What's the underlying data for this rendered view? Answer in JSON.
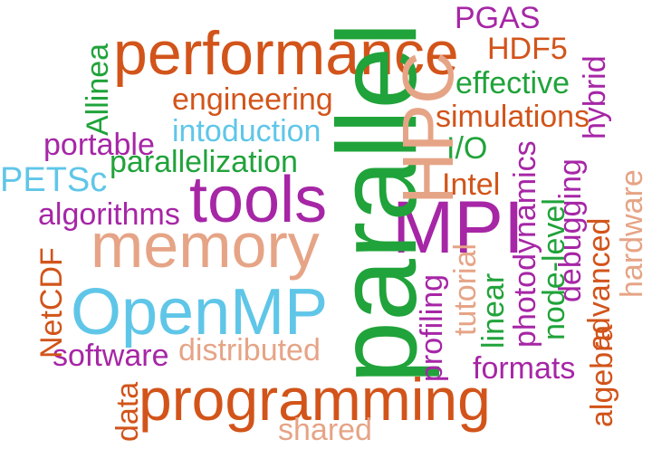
{
  "word_cloud": {
    "colors": {
      "orange": "#d2541a",
      "green": "#20a33a",
      "purple": "#a626a6",
      "blue": "#5fc6e8",
      "peach": "#e6a486"
    },
    "words": {
      "performance": "performance",
      "PGAS": "PGAS",
      "HDF5": "HDF5",
      "hybrid": "hybrid",
      "Allinea": "Allinea",
      "parallel": "parallel",
      "HPC": "HPC",
      "effective": "effective",
      "engineering": "engineering",
      "simulations": "simulations",
      "intoduction": "intoduction",
      "portable": "portable",
      "I/O": "I/O",
      "PETSc": "PETSc",
      "parallelization": "parallelization",
      "Intel": "Intel",
      "hardware": "hardware",
      "tools": "tools",
      "algorithms": "algorithms",
      "MPI": "MPI",
      "memory": "memory",
      "NetCDF": "NetCDF",
      "tutorial": "tutorial",
      "photodynamics": "photodynamics",
      "node_level": "node-level",
      "debugging": "debugging",
      "OpenMP": "OpenMP",
      "profiling": "profiling",
      "linear": "linear",
      "advanced": "advanced",
      "algebra": "algebra",
      "software": "software",
      "distributed": "distributed",
      "formats": "formats",
      "data": "data",
      "programming": "programming",
      "shared": "shared"
    }
  }
}
